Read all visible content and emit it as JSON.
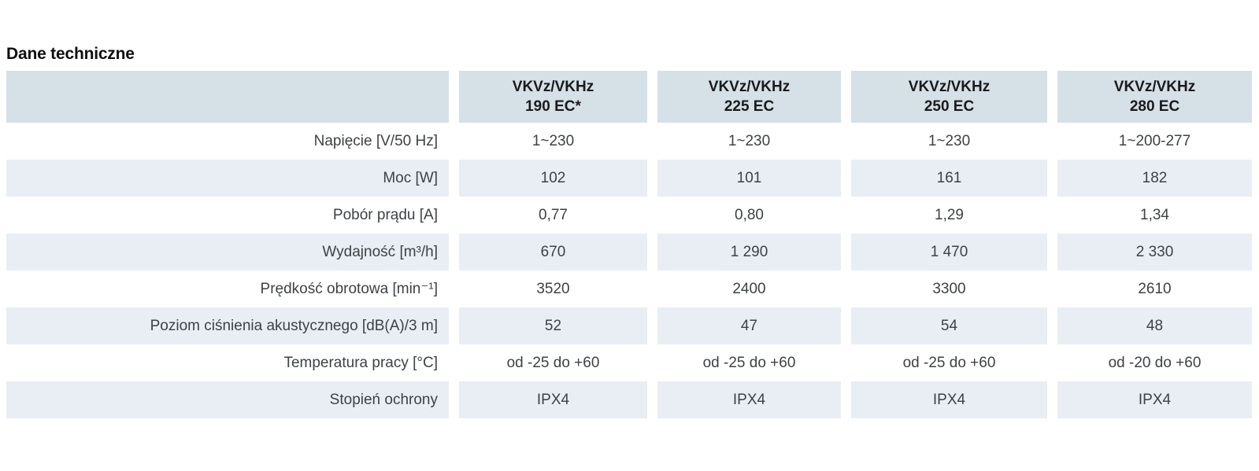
{
  "page_title": "Dane techniczne",
  "table": {
    "columns": [
      {
        "line1": "VKVz/VKHz",
        "line2": "190 EC*"
      },
      {
        "line1": "VKVz/VKHz",
        "line2": "225 EC"
      },
      {
        "line1": "VKVz/VKHz",
        "line2": "250 EC"
      },
      {
        "line1": "VKVz/VKHz",
        "line2": "280 EC"
      }
    ],
    "rows": [
      {
        "label": "Napięcie [V/50 Hz]",
        "values": [
          "1~230",
          "1~230",
          "1~230",
          "1~200-277"
        ]
      },
      {
        "label": "Moc [W]",
        "values": [
          "102",
          "101",
          "161",
          "182"
        ]
      },
      {
        "label": "Pobór prądu [A]",
        "values": [
          "0,77",
          "0,80",
          "1,29",
          "1,34"
        ]
      },
      {
        "label": "Wydajność [m³/h]",
        "values": [
          "670",
          "1 290",
          "1 470",
          "2 330"
        ]
      },
      {
        "label": "Prędkość obrotowa [min⁻¹]",
        "values": [
          "3520",
          "2400",
          "3300",
          "2610"
        ]
      },
      {
        "label": "Poziom ciśnienia akustycznego [dB(A)/3 m]",
        "values": [
          "52",
          "47",
          "54",
          "48"
        ]
      },
      {
        "label": "Temperatura pracy [°C]",
        "values": [
          "od -25 do +60",
          "od -25 do +60",
          "od -25 do +60",
          "od -20 do +60"
        ]
      },
      {
        "label": "Stopień ochrony",
        "values": [
          "IPX4",
          "IPX4",
          "IPX4",
          "IPX4"
        ]
      }
    ],
    "colors": {
      "header_bg": "#d5e0e7",
      "alt_row_bg": "#e9eef4",
      "header_text": "#1a1a1a",
      "body_text": "#3e4245"
    }
  }
}
